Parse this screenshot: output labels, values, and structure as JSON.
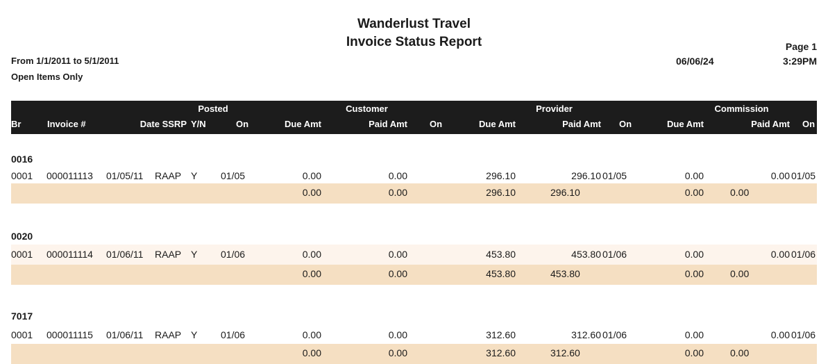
{
  "report": {
    "company": "Wanderlust Travel",
    "title": "Invoice Status Report",
    "date_range": "From 1/1/2011 to 5/1/2011",
    "filter": "Open Items Only",
    "page": "Page 1",
    "print_date": "06/06/24",
    "print_time": "3:29PM"
  },
  "columns": {
    "group_posted": "Posted",
    "group_customer": "Customer",
    "group_provider": "Provider",
    "group_commission": "Commission",
    "br": "Br",
    "invoice": "Invoice #",
    "date_ssrp": "Date SSRP",
    "yn": "Y/N",
    "posted_on": "On",
    "cust_due": "Due Amt",
    "cust_paid": "Paid Amt",
    "cust_on": "On",
    "prov_due": "Due Amt",
    "prov_paid": "Paid Amt",
    "prov_on": "On",
    "comm_due": "Due Amt",
    "comm_paid": "Paid Amt",
    "comm_on": "On"
  },
  "groups": [
    {
      "code": "0016",
      "row": {
        "br": "0001",
        "invoice": "000011113",
        "date": "01/05/11",
        "ssrp": "RAAP",
        "yn": "Y",
        "posted_on": "01/05",
        "cust_due": "0.00",
        "cust_paid": "0.00",
        "prov_due": "296.10",
        "prov_paid": "296.10",
        "prov_on": "01/05",
        "comm_due": "0.00",
        "comm_paid": "0.00",
        "comm_on": "01/05"
      },
      "total": {
        "cust_due": "0.00",
        "cust_paid": "0.00",
        "prov_due": "296.10",
        "prov_paid": "296.10",
        "comm_due": "0.00",
        "comm_paid": "0.00"
      }
    },
    {
      "code": "0020",
      "row": {
        "br": "0001",
        "invoice": "000011114",
        "date": "01/06/11",
        "ssrp": "RAAP",
        "yn": "Y",
        "posted_on": "01/06",
        "cust_due": "0.00",
        "cust_paid": "0.00",
        "prov_due": "453.80",
        "prov_paid": "453.80",
        "prov_on": "01/06",
        "comm_due": "0.00",
        "comm_paid": "0.00",
        "comm_on": "01/06"
      },
      "total": {
        "cust_due": "0.00",
        "cust_paid": "0.00",
        "prov_due": "453.80",
        "prov_paid": "453.80",
        "comm_due": "0.00",
        "comm_paid": "0.00"
      }
    },
    {
      "code": "7017",
      "row": {
        "br": "0001",
        "invoice": "000011115",
        "date": "01/06/11",
        "ssrp": "RAAP",
        "yn": "Y",
        "posted_on": "01/06",
        "cust_due": "0.00",
        "cust_paid": "0.00",
        "prov_due": "312.60",
        "prov_paid": "312.60",
        "prov_on": "01/06",
        "comm_due": "0.00",
        "comm_paid": "0.00",
        "comm_on": "01/06"
      },
      "total": {
        "cust_due": "0.00",
        "cust_paid": "0.00",
        "prov_due": "312.60",
        "prov_paid": "312.60",
        "comm_due": "0.00",
        "comm_paid": "0.00"
      }
    }
  ]
}
